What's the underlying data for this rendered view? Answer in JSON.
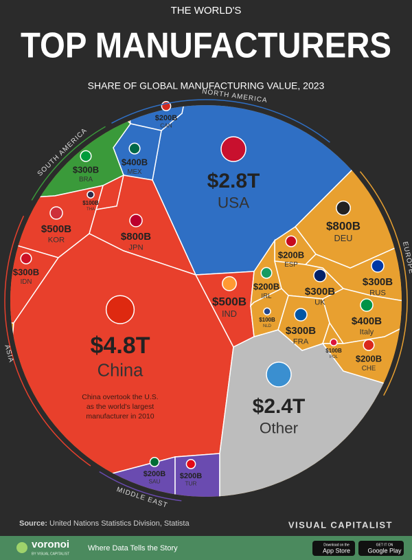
{
  "chart_data": {
    "type": "voronoi",
    "pretitle": "THE WORLD'S",
    "title": "TOP MANUFACTURERS",
    "subtitle": "SHARE OF GLOBAL MANUFACTURING VALUE, 2023",
    "series": [
      {
        "name": "NORTH AMERICA",
        "color": "#2f6fc4",
        "categories": [
          "USA",
          "CAN",
          "MEX"
        ],
        "values": [
          2800,
          200,
          400
        ],
        "value_labels": [
          "$2.8T",
          "$200B",
          "$400B"
        ]
      },
      {
        "name": "SOUTH AMERICA",
        "color": "#3a9a3a",
        "categories": [
          "BRA"
        ],
        "values": [
          300
        ],
        "value_labels": [
          "$300B"
        ]
      },
      {
        "name": "ASIA",
        "color": "#e8402c",
        "categories": [
          "THA",
          "KOR",
          "JPN",
          "IDN",
          "China",
          "IND"
        ],
        "values": [
          100,
          500,
          800,
          300,
          4800,
          500
        ],
        "value_labels": [
          "$100B",
          "$500B",
          "$800B",
          "$300B",
          "$4.8T",
          "$500B"
        ]
      },
      {
        "name": "MIDDLE EAST",
        "color": "#6a4bb0",
        "categories": [
          "SAU",
          "TUR"
        ],
        "values": [
          200,
          200
        ],
        "value_labels": [
          "$200B",
          "$200B"
        ]
      },
      {
        "color": "#bdbdbd",
        "categories": [
          "Other"
        ],
        "values": [
          2400
        ],
        "value_labels": [
          "$2.4T"
        ]
      },
      {
        "name": "EUROPE",
        "color": "#e8a030",
        "categories": [
          "DEU",
          "ESP",
          "IRL",
          "UK",
          "RUS",
          "NLD",
          "FRA",
          "Italy",
          "POL",
          "CHE"
        ],
        "values": [
          800,
          200,
          200,
          300,
          300,
          100,
          300,
          400,
          100,
          200
        ],
        "value_labels": [
          "$800B",
          "$200B",
          "$200B",
          "$300B",
          "$300B",
          "$100B",
          "$300B",
          "$400B",
          "$100B",
          "$200B"
        ]
      }
    ],
    "annotation": [
      "China overtook the U.S.",
      "as the world's largest",
      "manufacturer in 2010"
    ],
    "source_label": "Source:",
    "source": "United Nations Statistics Division, Statista",
    "brand": "VISUAL CAPITALIST",
    "footer": {
      "logo": "voronoi",
      "logo_sub": "BY VISUAL CAPITALIST",
      "tagline": "Where Data Tells the Story",
      "app_store_small": "Download on the",
      "app_store": "App Store",
      "google_small": "GET IT ON",
      "google": "Google Play"
    }
  }
}
